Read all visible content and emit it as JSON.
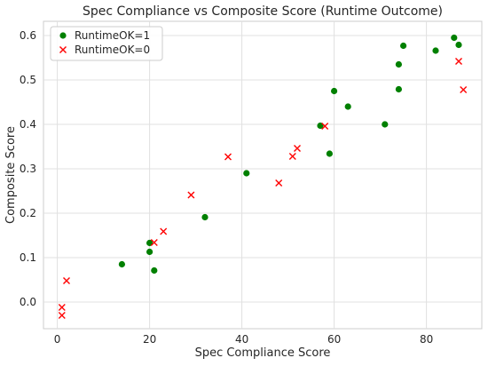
{
  "chart_data": {
    "type": "scatter",
    "title": "Spec Compliance vs Composite Score (Runtime Outcome)",
    "xlabel": "Spec Compliance Score",
    "ylabel": "Composite Score",
    "xlim": [
      -3,
      92
    ],
    "ylim": [
      -0.06,
      0.632
    ],
    "xticks": [
      0,
      20,
      40,
      60,
      80
    ],
    "xtick_labels": [
      "0",
      "20",
      "40",
      "60",
      "80"
    ],
    "yticks": [
      0.0,
      0.1,
      0.2,
      0.3,
      0.4,
      0.5,
      0.6
    ],
    "ytick_labels": [
      "0.0",
      "0.1",
      "0.2",
      "0.3",
      "0.4",
      "0.5",
      "0.6"
    ],
    "grid": true,
    "legend_position": "top-left",
    "series": [
      {
        "name": "RuntimeOK=1",
        "marker": "circle",
        "color": "#008000",
        "points": [
          [
            14,
            0.085
          ],
          [
            20,
            0.113
          ],
          [
            20,
            0.133
          ],
          [
            21,
            0.071
          ],
          [
            32,
            0.191
          ],
          [
            41,
            0.29
          ],
          [
            57,
            0.397
          ],
          [
            59,
            0.334
          ],
          [
            60,
            0.475
          ],
          [
            63,
            0.44
          ],
          [
            71,
            0.4
          ],
          [
            74,
            0.535
          ],
          [
            74,
            0.479
          ],
          [
            75,
            0.577
          ],
          [
            82,
            0.566
          ],
          [
            86,
            0.595
          ],
          [
            87,
            0.579
          ]
        ]
      },
      {
        "name": "RuntimeOK=0",
        "marker": "x",
        "color": "#ff0000",
        "points": [
          [
            1,
            -0.012
          ],
          [
            1,
            -0.03
          ],
          [
            2,
            0.048
          ],
          [
            21,
            0.134
          ],
          [
            23,
            0.159
          ],
          [
            29,
            0.241
          ],
          [
            37,
            0.327
          ],
          [
            48,
            0.268
          ],
          [
            51,
            0.328
          ],
          [
            52,
            0.346
          ],
          [
            58,
            0.396
          ],
          [
            87,
            0.542
          ],
          [
            88,
            0.478
          ]
        ]
      }
    ]
  }
}
